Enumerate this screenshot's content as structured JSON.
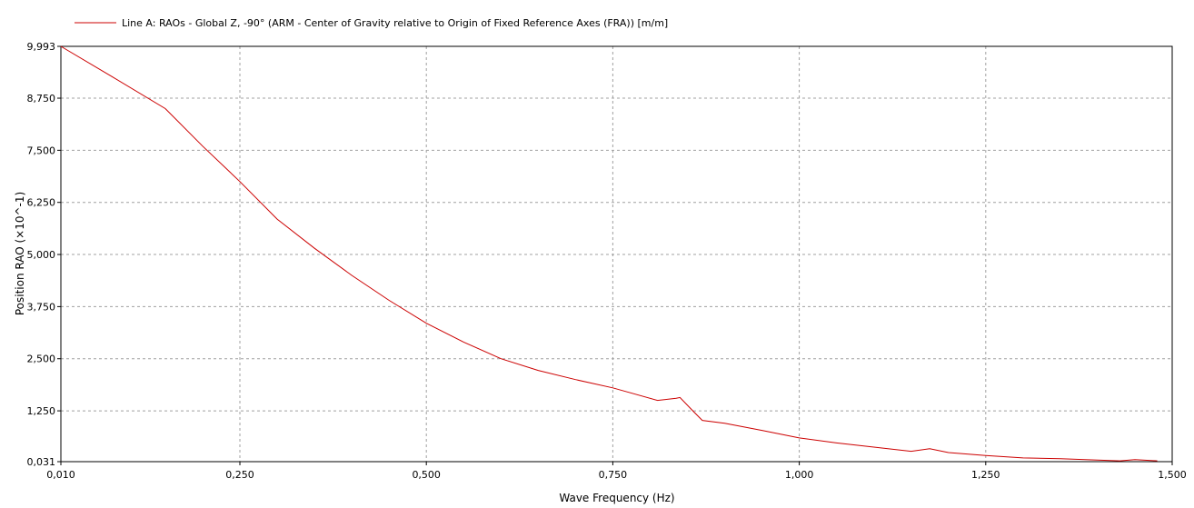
{
  "chart_data": {
    "type": "line",
    "legend": "Line A: RAOs - Global Z, -90° (ARM - Center of Gravity relative to Origin of Fixed Reference Axes (FRA)) [m/m]",
    "legend_position": "top-left",
    "series_color": "#cc0000",
    "xlabel": "Wave Frequency (Hz)",
    "ylabel": "Position RAO (×10^-1)",
    "xlim": [
      0.01,
      1.5
    ],
    "ylim": [
      0.031,
      9.993
    ],
    "grid": true,
    "x_ticks": [
      {
        "value": 0.01,
        "label": "0,010"
      },
      {
        "value": 0.25,
        "label": "0,250"
      },
      {
        "value": 0.5,
        "label": "0,500"
      },
      {
        "value": 0.75,
        "label": "0,750"
      },
      {
        "value": 1.0,
        "label": "1,000"
      },
      {
        "value": 1.25,
        "label": "1,250"
      },
      {
        "value": 1.5,
        "label": "1,500"
      }
    ],
    "y_ticks": [
      {
        "value": 0.031,
        "label": "0,031"
      },
      {
        "value": 1.25,
        "label": "1,250"
      },
      {
        "value": 2.5,
        "label": "2,500"
      },
      {
        "value": 3.75,
        "label": "3,750"
      },
      {
        "value": 5.0,
        "label": "5,000"
      },
      {
        "value": 6.25,
        "label": "6,250"
      },
      {
        "value": 7.5,
        "label": "7,500"
      },
      {
        "value": 8.75,
        "label": "8,750"
      },
      {
        "value": 9.993,
        "label": "9,993"
      }
    ],
    "series": [
      {
        "x": [
          0.01,
          0.08,
          0.15,
          0.2,
          0.25,
          0.3,
          0.35,
          0.4,
          0.45,
          0.5,
          0.55,
          0.6,
          0.65,
          0.7,
          0.75,
          0.78,
          0.81,
          0.835,
          0.84,
          0.86,
          0.87,
          0.9,
          0.95,
          1.0,
          1.05,
          1.1,
          1.15,
          1.175,
          1.2,
          1.25,
          1.3,
          1.35,
          1.4,
          1.43,
          1.45,
          1.48
        ],
        "y": [
          9.993,
          9.25,
          8.5,
          7.6,
          6.75,
          5.85,
          5.15,
          4.5,
          3.9,
          3.35,
          2.9,
          2.5,
          2.22,
          2.0,
          1.8,
          1.65,
          1.5,
          1.55,
          1.57,
          1.2,
          1.02,
          0.95,
          0.78,
          0.6,
          0.48,
          0.38,
          0.28,
          0.34,
          0.25,
          0.18,
          0.12,
          0.1,
          0.07,
          0.05,
          0.08,
          0.05
        ]
      }
    ]
  }
}
